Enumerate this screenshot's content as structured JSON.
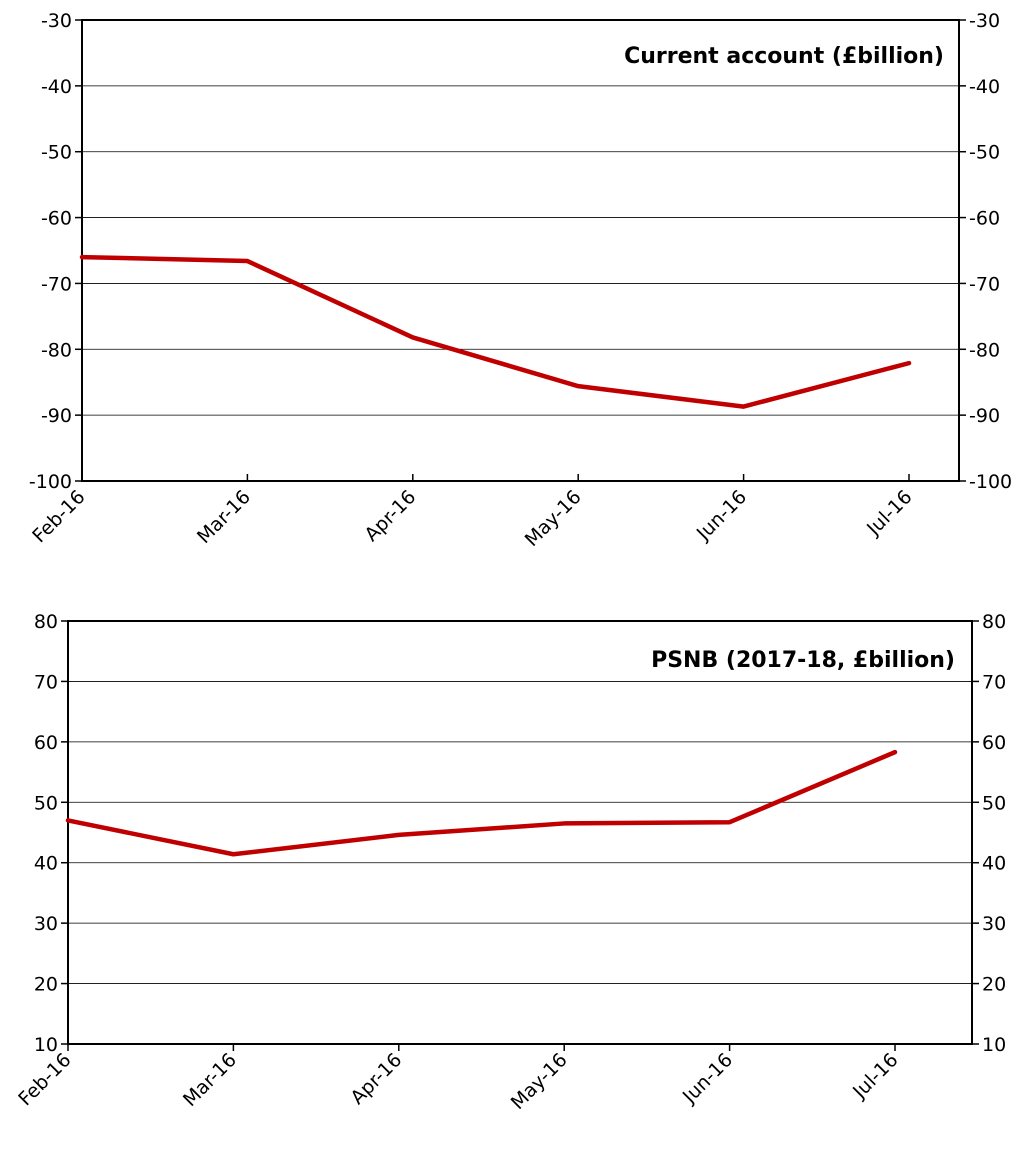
{
  "chart_data": [
    {
      "type": "line",
      "title": "Current account (£billion)",
      "xlabel": "",
      "ylabel": "",
      "categories": [
        "Feb-16",
        "Mar-16",
        "Apr-16",
        "May-16",
        "Jun-16",
        "Jul-16"
      ],
      "series": [
        {
          "color": "#c00000",
          "values": [
            -66.0,
            -66.6,
            -78.2,
            -85.6,
            -88.7,
            -82.1
          ]
        }
      ],
      "ylim": [
        -100,
        -30
      ],
      "yticks": [
        "-30",
        "-40",
        "-50",
        "-60",
        "-70",
        "-80",
        "-90",
        "-100"
      ],
      "ytick_values": [
        -30,
        -40,
        -50,
        -60,
        -70,
        -80,
        -90,
        -100
      ],
      "grid": true,
      "dual_y_axis": true
    },
    {
      "type": "line",
      "title": "PSNB (2017-18, £billion)",
      "xlabel": "",
      "ylabel": "",
      "categories": [
        "Feb-16",
        "Mar-16",
        "Apr-16",
        "May-16",
        "Jun-16",
        "Jul-16"
      ],
      "series": [
        {
          "color": "#c00000",
          "values": [
            47.0,
            41.4,
            44.6,
            46.5,
            46.7,
            58.3
          ]
        }
      ],
      "ylim": [
        10,
        80
      ],
      "yticks": [
        "80",
        "70",
        "60",
        "50",
        "40",
        "30",
        "20",
        "10"
      ],
      "ytick_values": [
        80,
        70,
        60,
        50,
        40,
        30,
        20,
        10
      ],
      "grid": true,
      "dual_y_axis": true
    }
  ]
}
